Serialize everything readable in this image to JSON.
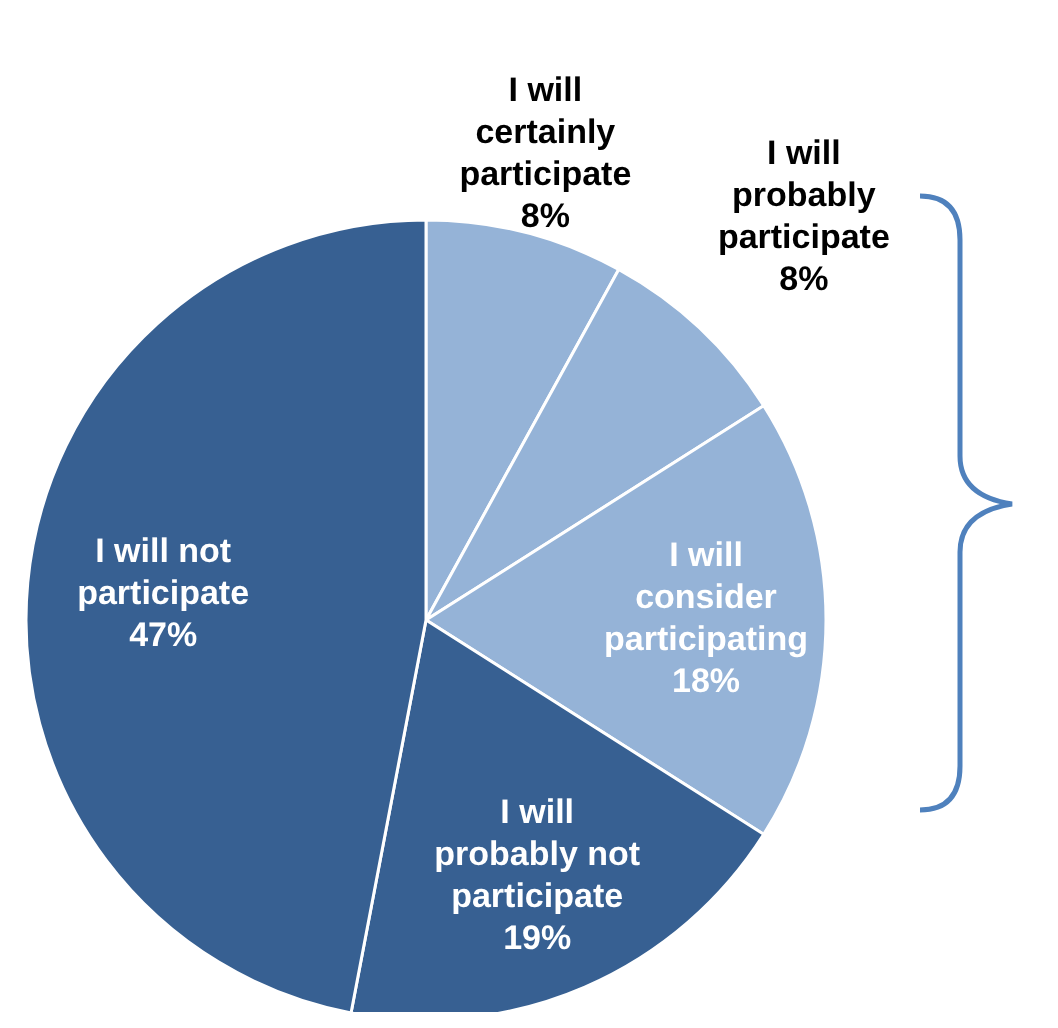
{
  "chart_data": {
    "type": "pie",
    "categories": [
      "I will\ncertainly\nparticipate",
      "I will\nprobably\nparticipate",
      "I will\nconsider\nparticipating",
      "I will\nprobably not\nparticipate",
      "I will not\nparticipate"
    ],
    "values": [
      8,
      8,
      18,
      19,
      47
    ],
    "colors": [
      "#95b3d7",
      "#95b3d7",
      "#95b3d7",
      "#376092",
      "#376092"
    ],
    "value_labels": [
      "8%",
      "8%",
      "18%",
      "19%",
      "47%"
    ]
  }
}
